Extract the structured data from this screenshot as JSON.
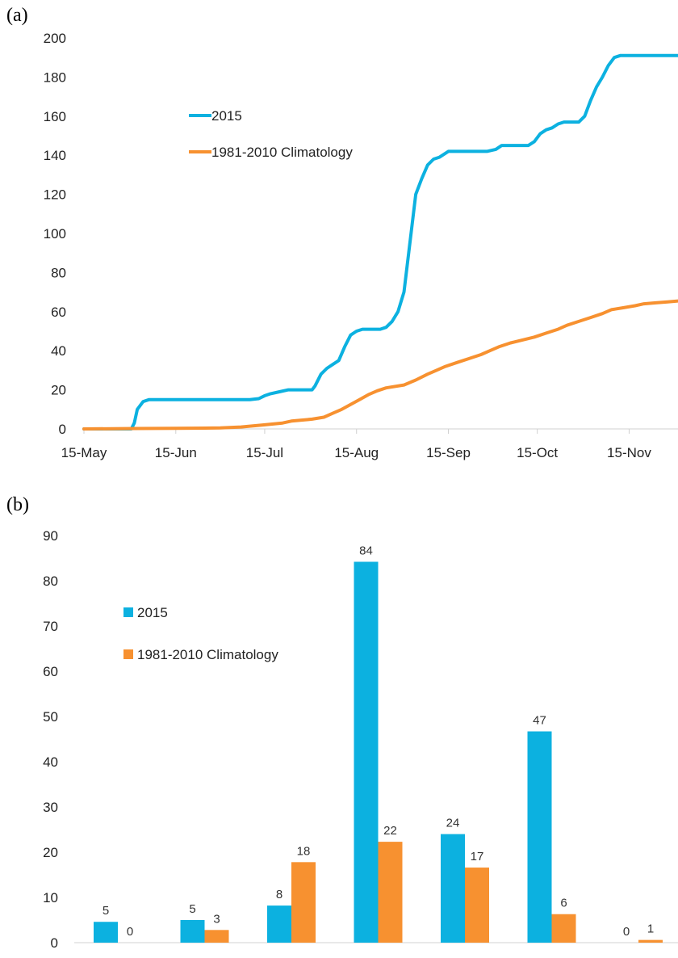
{
  "panels": {
    "a": "(a)",
    "b": "(b)"
  },
  "colors": {
    "s2015": "#0cb1e0",
    "clim": "#f79130"
  },
  "chart_data": [
    {
      "type": "line",
      "xticks": [
        "15-May",
        "15-Jun",
        "15-Jul",
        "15-Aug",
        "15-Sep",
        "15-Oct",
        "15-Nov"
      ],
      "ylim": [
        0,
        200
      ],
      "yticks": [
        0,
        20,
        40,
        60,
        80,
        100,
        120,
        140,
        160,
        180,
        200
      ],
      "legend": {
        "position": "upper-left"
      },
      "series": [
        {
          "name": "2015",
          "points": [
            [
              "05-15",
              0
            ],
            [
              "05-31",
              0
            ],
            [
              "06-01",
              3
            ],
            [
              "06-02",
              10
            ],
            [
              "06-04",
              14
            ],
            [
              "06-06",
              15
            ],
            [
              "06-20",
              15
            ],
            [
              "07-10",
              15
            ],
            [
              "07-13",
              15.5
            ],
            [
              "07-15",
              17
            ],
            [
              "07-17",
              18
            ],
            [
              "07-20",
              19
            ],
            [
              "07-23",
              20
            ],
            [
              "07-31",
              20
            ],
            [
              "08-01",
              22
            ],
            [
              "08-03",
              28
            ],
            [
              "08-05",
              31
            ],
            [
              "08-07",
              33
            ],
            [
              "08-09",
              35
            ],
            [
              "08-11",
              42
            ],
            [
              "08-13",
              48
            ],
            [
              "08-15",
              50
            ],
            [
              "08-17",
              51
            ],
            [
              "08-23",
              51
            ],
            [
              "08-25",
              52
            ],
            [
              "08-27",
              55
            ],
            [
              "08-29",
              60
            ],
            [
              "08-31",
              70
            ],
            [
              "09-02",
              95
            ],
            [
              "09-04",
              120
            ],
            [
              "09-06",
              128
            ],
            [
              "09-08",
              135
            ],
            [
              "09-10",
              138
            ],
            [
              "09-12",
              139
            ],
            [
              "09-15",
              142
            ],
            [
              "09-28",
              142
            ],
            [
              "10-01",
              143
            ],
            [
              "10-03",
              145
            ],
            [
              "10-12",
              145
            ],
            [
              "10-14",
              147
            ],
            [
              "10-16",
              151
            ],
            [
              "10-18",
              153
            ],
            [
              "10-20",
              154
            ],
            [
              "10-22",
              156
            ],
            [
              "10-24",
              157
            ],
            [
              "10-29",
              157
            ],
            [
              "10-31",
              160
            ],
            [
              "11-02",
              168
            ],
            [
              "11-04",
              175
            ],
            [
              "11-06",
              180
            ],
            [
              "11-08",
              186
            ],
            [
              "11-10",
              190
            ],
            [
              "11-12",
              191
            ],
            [
              "11-14",
              191
            ],
            [
              "12-14",
              191
            ],
            [
              "12-15",
              192
            ],
            [
              "12-25",
              192
            ]
          ]
        },
        {
          "name": "1981-2010 Climatology",
          "points": [
            [
              "05-15",
              0
            ],
            [
              "06-01",
              0.2
            ],
            [
              "06-15",
              0.3
            ],
            [
              "06-30",
              0.5
            ],
            [
              "07-07",
              1
            ],
            [
              "07-14",
              2
            ],
            [
              "07-21",
              3
            ],
            [
              "07-24",
              4
            ],
            [
              "07-31",
              5
            ],
            [
              "08-04",
              6
            ],
            [
              "08-07",
              8
            ],
            [
              "08-10",
              10
            ],
            [
              "08-13",
              12.5
            ],
            [
              "08-16",
              15
            ],
            [
              "08-19",
              17.5
            ],
            [
              "08-22",
              19.5
            ],
            [
              "08-25",
              21
            ],
            [
              "08-31",
              22.5
            ],
            [
              "09-04",
              25
            ],
            [
              "09-08",
              28
            ],
            [
              "09-11",
              30
            ],
            [
              "09-14",
              32
            ],
            [
              "09-18",
              34
            ],
            [
              "09-22",
              36
            ],
            [
              "09-26",
              38
            ],
            [
              "09-29",
              40
            ],
            [
              "10-02",
              42
            ],
            [
              "10-06",
              44
            ],
            [
              "10-10",
              45.5
            ],
            [
              "10-14",
              47
            ],
            [
              "10-18",
              49
            ],
            [
              "10-22",
              51
            ],
            [
              "10-25",
              53
            ],
            [
              "10-29",
              55
            ],
            [
              "11-02",
              57
            ],
            [
              "11-06",
              59
            ],
            [
              "11-09",
              61
            ],
            [
              "11-13",
              62
            ],
            [
              "11-17",
              63
            ],
            [
              "11-20",
              64
            ],
            [
              "11-24",
              64.5
            ],
            [
              "11-28",
              65
            ],
            [
              "12-02",
              65.5
            ],
            [
              "12-06",
              66
            ],
            [
              "12-10",
              67
            ],
            [
              "12-14",
              68
            ],
            [
              "12-18",
              68.5
            ],
            [
              "12-22",
              68.6
            ],
            [
              "12-25",
              68.6
            ]
          ]
        }
      ]
    },
    {
      "type": "bar",
      "categories": [
        "May",
        "June",
        "July",
        "August",
        "September",
        "October",
        "November"
      ],
      "ylim": [
        0,
        90
      ],
      "yticks": [
        0,
        10,
        20,
        30,
        40,
        50,
        60,
        70,
        80,
        90
      ],
      "legend": {
        "position": "upper-left"
      },
      "series": [
        {
          "name": "2015",
          "values": [
            4.6,
            5,
            8.2,
            84.2,
            24,
            46.7,
            0
          ],
          "labels": [
            "5",
            "5",
            "8",
            "84",
            "24",
            "47",
            "0"
          ]
        },
        {
          "name": "1981-2010 Climatology",
          "values": [
            0,
            2.8,
            17.8,
            22.3,
            16.6,
            6.3,
            0.6
          ],
          "labels": [
            "0",
            "3",
            "18",
            "22",
            "17",
            "6",
            "1"
          ]
        }
      ]
    }
  ]
}
